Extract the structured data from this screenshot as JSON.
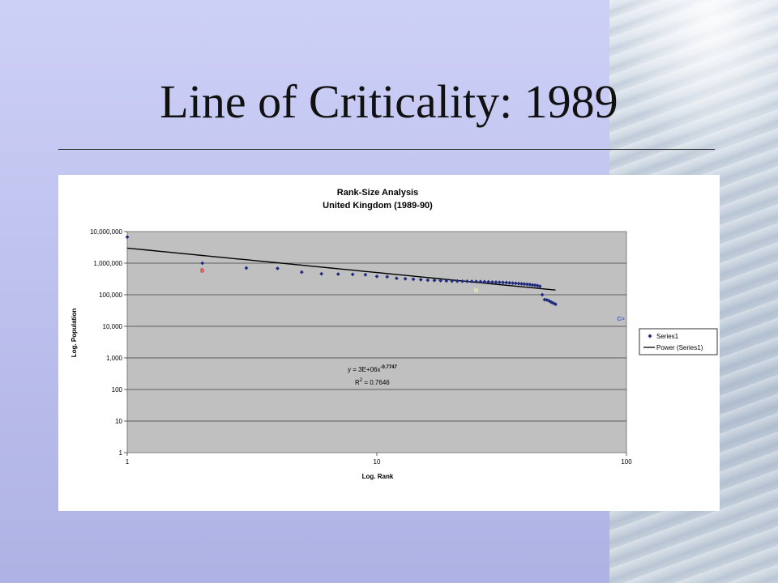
{
  "slide": {
    "title": "Line of Criticality: 1989"
  },
  "chart_data": {
    "type": "scatter",
    "title": "Rank-Size Analysis",
    "subtitle": "United Kingdom (1989-90)",
    "xlabel": "Log. Rank",
    "ylabel": "Log. Population",
    "x_scale": "log",
    "y_scale": "log",
    "xlim": [
      1,
      100
    ],
    "ylim": [
      1,
      10000000
    ],
    "x_ticks": [
      {
        "value": 1,
        "label": "1"
      },
      {
        "value": 10,
        "label": "10"
      },
      {
        "value": 100,
        "label": "100"
      }
    ],
    "y_ticks": [
      {
        "value": 1,
        "label": "1"
      },
      {
        "value": 10,
        "label": "10"
      },
      {
        "value": 100,
        "label": "100"
      },
      {
        "value": 1000,
        "label": "1,000"
      },
      {
        "value": 10000,
        "label": "10,000"
      },
      {
        "value": 100000,
        "label": "100,000"
      },
      {
        "value": 1000000,
        "label": "1,000,000"
      },
      {
        "value": 10000000,
        "label": "10,000,000"
      }
    ],
    "grid": "horizontal",
    "legend_position": "right",
    "colors": {
      "plot_background": "#c0c0c0",
      "points": "#1f2a80",
      "trendline": "#000000",
      "annotation_b": "#e02020",
      "annotation_n": "#f5f5a0",
      "annotation_c": "#3060c0"
    },
    "series": [
      {
        "name": "Series1",
        "marker": "diamond",
        "points": [
          [
            1,
            6700000
          ],
          [
            2,
            1000000
          ],
          [
            3,
            700000
          ],
          [
            4,
            680000
          ],
          [
            5,
            520000
          ],
          [
            6,
            460000
          ],
          [
            7,
            450000
          ],
          [
            8,
            440000
          ],
          [
            9,
            430000
          ],
          [
            10,
            380000
          ],
          [
            11,
            370000
          ],
          [
            12,
            330000
          ],
          [
            13,
            320000
          ],
          [
            14,
            310000
          ],
          [
            15,
            300000
          ],
          [
            16,
            290000
          ],
          [
            17,
            285000
          ],
          [
            18,
            280000
          ],
          [
            19,
            275000
          ],
          [
            20,
            272000
          ],
          [
            21,
            270000
          ],
          [
            22,
            268000
          ],
          [
            23,
            266000
          ],
          [
            24,
            264000
          ],
          [
            25,
            262000
          ],
          [
            26,
            260000
          ],
          [
            27,
            258000
          ],
          [
            28,
            255000
          ],
          [
            29,
            252000
          ],
          [
            30,
            250000
          ],
          [
            31,
            248000
          ],
          [
            32,
            245000
          ],
          [
            33,
            242000
          ],
          [
            34,
            238000
          ],
          [
            35,
            234000
          ],
          [
            36,
            230000
          ],
          [
            37,
            226000
          ],
          [
            38,
            222000
          ],
          [
            39,
            218000
          ],
          [
            40,
            214000
          ],
          [
            41,
            210000
          ],
          [
            42,
            205000
          ],
          [
            43,
            200000
          ],
          [
            44,
            195000
          ],
          [
            45,
            185000
          ],
          [
            46,
            100000
          ],
          [
            47,
            70000
          ],
          [
            48,
            68000
          ],
          [
            49,
            64000
          ],
          [
            50,
            58000
          ],
          [
            51,
            54000
          ],
          [
            52,
            50000
          ]
        ]
      }
    ],
    "trendline": {
      "name": "Power (Series1)",
      "type": "power",
      "coefficient": 3000000,
      "exponent": -0.7747,
      "x_range": [
        1,
        52
      ]
    },
    "legend": [
      "Series1",
      "Power (Series1)"
    ],
    "equation": {
      "line1_prefix": "y = 3E+06x",
      "line1_exponent": "-0.7747",
      "line2_prefix": "R",
      "line2_superscript": "2",
      "line2_suffix": " = 0.7646"
    },
    "point_annotations": [
      {
        "text": "B",
        "x": 2,
        "y": 500000
      },
      {
        "text": "N",
        "x": 25,
        "y": 120000
      },
      {
        "text": "C>",
        "x": 95,
        "y": 15000
      }
    ]
  }
}
